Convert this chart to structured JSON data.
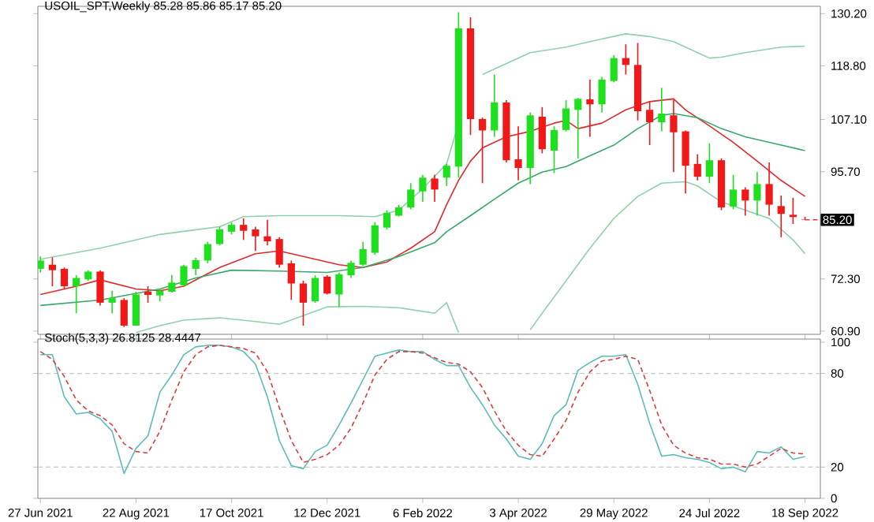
{
  "chart_data": [
    {
      "type": "candlestick",
      "title": "USOIL_SPT,Weekly  85.28 85.86 85.17 85.20",
      "x": [
        "2021-06-27",
        "2021-07-04",
        "2021-07-11",
        "2021-07-18",
        "2021-07-25",
        "2021-08-01",
        "2021-08-08",
        "2021-08-15",
        "2021-08-22",
        "2021-08-29",
        "2021-09-05",
        "2021-09-12",
        "2021-09-19",
        "2021-09-26",
        "2021-10-03",
        "2021-10-10",
        "2021-10-17",
        "2021-10-24",
        "2021-10-31",
        "2021-11-07",
        "2021-11-14",
        "2021-11-21",
        "2021-11-28",
        "2021-12-05",
        "2021-12-12",
        "2021-12-19",
        "2021-12-26",
        "2022-01-02",
        "2022-01-09",
        "2022-01-16",
        "2022-01-23",
        "2022-01-30",
        "2022-02-06",
        "2022-02-13",
        "2022-02-20",
        "2022-02-27",
        "2022-03-06",
        "2022-03-13",
        "2022-03-20",
        "2022-03-27",
        "2022-04-03",
        "2022-04-10",
        "2022-04-17",
        "2022-04-24",
        "2022-05-01",
        "2022-05-08",
        "2022-05-15",
        "2022-05-22",
        "2022-05-29",
        "2022-06-05",
        "2022-06-12",
        "2022-06-19",
        "2022-06-26",
        "2022-07-03",
        "2022-07-10",
        "2022-07-17",
        "2022-07-24",
        "2022-07-31",
        "2022-08-07",
        "2022-08-14",
        "2022-08-21",
        "2022-08-28",
        "2022-09-04",
        "2022-09-11",
        "2022-09-18"
      ],
      "ohlc": [
        [
          74.5,
          77.2,
          73.7,
          76.3
        ],
        [
          75.4,
          77.0,
          70.7,
          74.2
        ],
        [
          74.5,
          74.8,
          70.1,
          70.7
        ],
        [
          70.7,
          73.1,
          64.8,
          72.5
        ],
        [
          72.2,
          74.2,
          71.9,
          73.9
        ],
        [
          73.9,
          74.2,
          66.5,
          67.1
        ],
        [
          67.1,
          69.7,
          64.8,
          68.1
        ],
        [
          67.7,
          68.1,
          61.8,
          62.1
        ],
        [
          62.1,
          69.5,
          62.1,
          68.9
        ],
        [
          69.5,
          70.7,
          67.1,
          68.8
        ],
        [
          68.7,
          70.1,
          67.4,
          69.7
        ],
        [
          69.5,
          73.1,
          69.3,
          71.5
        ],
        [
          70.9,
          75.4,
          70.7,
          75.1
        ],
        [
          74.5,
          76.9,
          73.1,
          76.4
        ],
        [
          76.3,
          80.4,
          75.7,
          79.9
        ],
        [
          79.9,
          83.7,
          79.6,
          83.1
        ],
        [
          82.6,
          84.6,
          82.0,
          84.1
        ],
        [
          84.1,
          85.5,
          80.8,
          82.8
        ],
        [
          83.1,
          83.7,
          78.4,
          81.6
        ],
        [
          81.6,
          85.2,
          79.6,
          80.5
        ],
        [
          81.0,
          81.4,
          74.8,
          75.4
        ],
        [
          75.7,
          76.3,
          67.7,
          71.3
        ],
        [
          71.3,
          71.9,
          62.1,
          67.1
        ],
        [
          67.4,
          73.1,
          67.1,
          72.5
        ],
        [
          72.8,
          73.1,
          68.9,
          69.1
        ],
        [
          68.9,
          73.7,
          66.2,
          73.3
        ],
        [
          73.1,
          76.3,
          72.5,
          75.8
        ],
        [
          75.4,
          80.4,
          75.1,
          78.8
        ],
        [
          78.0,
          84.7,
          77.6,
          84.0
        ],
        [
          83.5,
          87.3,
          83.1,
          86.7
        ],
        [
          86.1,
          88.5,
          85.9,
          87.9
        ],
        [
          87.9,
          93.2,
          87.5,
          91.8
        ],
        [
          91.4,
          95.0,
          89.1,
          94.4
        ],
        [
          94.2,
          95.0,
          89.1,
          91.8
        ],
        [
          94.4,
          97.4,
          92.6,
          97.0
        ],
        [
          96.8,
          130.5,
          94.4,
          127.0
        ],
        [
          127.0,
          129.4,
          103.7,
          107.2
        ],
        [
          107.2,
          107.5,
          93.2,
          104.7
        ],
        [
          104.7,
          116.9,
          103.3,
          110.8
        ],
        [
          110.8,
          111.3,
          97.7,
          98.2
        ],
        [
          98.4,
          105.6,
          93.8,
          96.5
        ],
        [
          96.5,
          108.6,
          93.0,
          108.0
        ],
        [
          107.7,
          109.8,
          99.7,
          100.6
        ],
        [
          100.3,
          105.6,
          95.4,
          104.8
        ],
        [
          104.8,
          111.3,
          104.5,
          109.5
        ],
        [
          109.2,
          111.8,
          98.6,
          111.6
        ],
        [
          111.5,
          115.8,
          103.3,
          110.4
        ],
        [
          110.4,
          116.4,
          108.6,
          115.8
        ],
        [
          115.5,
          121.1,
          115.2,
          120.5
        ],
        [
          120.5,
          123.5,
          116.9,
          119.0
        ],
        [
          119.0,
          123.8,
          106.9,
          108.9
        ],
        [
          109.2,
          111.0,
          101.5,
          106.5
        ],
        [
          106.5,
          114.0,
          104.5,
          108.4
        ],
        [
          108.0,
          111.4,
          95.6,
          104.3
        ],
        [
          104.5,
          104.7,
          90.9,
          97.0
        ],
        [
          97.4,
          99.5,
          93.8,
          94.6
        ],
        [
          94.6,
          101.9,
          93.2,
          98.2
        ],
        [
          98.2,
          98.6,
          87.3,
          87.9
        ],
        [
          88.1,
          95.0,
          87.5,
          91.8
        ],
        [
          91.8,
          92.3,
          86.1,
          89.4
        ],
        [
          89.4,
          95.6,
          86.1,
          93.0
        ],
        [
          93.0,
          97.7,
          86.1,
          88.5
        ],
        [
          88.2,
          90.5,
          81.4,
          86.5
        ],
        [
          86.3,
          90.0,
          84.3,
          85.8
        ],
        [
          85.28,
          85.86,
          85.17,
          85.2
        ]
      ],
      "colors": [
        "#1fe01f",
        "#f01818",
        "#f01818",
        "#1fe01f",
        "#1fe01f",
        "#f01818",
        "#1fe01f",
        "#f01818",
        "#1fe01f",
        "#f01818",
        "#1fe01f",
        "#1fe01f",
        "#1fe01f",
        "#1fe01f",
        "#1fe01f",
        "#1fe01f",
        "#1fe01f",
        "#f01818",
        "#f01818",
        "#f01818",
        "#f01818",
        "#f01818",
        "#f01818",
        "#1fe01f",
        "#f01818",
        "#1fe01f",
        "#1fe01f",
        "#1fe01f",
        "#1fe01f",
        "#1fe01f",
        "#1fe01f",
        "#1fe01f",
        "#1fe01f",
        "#f01818",
        "#1fe01f",
        "#1fe01f",
        "#f01818",
        "#f01818",
        "#1fe01f",
        "#f01818",
        "#f01818",
        "#1fe01f",
        "#f01818",
        "#1fe01f",
        "#1fe01f",
        "#1fe01f",
        "#f01818",
        "#1fe01f",
        "#1fe01f",
        "#f01818",
        "#f01818",
        "#f01818",
        "#1fe01f",
        "#f01818",
        "#f01818",
        "#f01818",
        "#1fe01f",
        "#f01818",
        "#1fe01f",
        "#f01818",
        "#1fe01f",
        "#f01818",
        "#f01818",
        "#f01818",
        "#f01818"
      ],
      "series": [
        {
          "type": "line",
          "color": "#8fd1ab",
          "x": [
            "2021-06-27",
            "2021-08-01",
            "2021-09-05",
            "2021-10-10",
            "2021-10-24",
            "2021-11-14",
            "2021-12-19",
            "2022-01-09",
            "2022-01-23",
            "2022-02-06",
            "2022-02-20",
            "2022-02-27",
            "2022-03-06",
            "2022-03-13",
            "2022-03-27",
            "2022-04-10",
            "2022-05-01",
            "2022-05-15",
            "2022-06-05",
            "2022-06-19",
            "2022-07-03",
            "2022-07-17",
            "2022-07-24",
            "2022-07-31",
            "2022-08-14",
            "2022-09-04",
            "2022-09-18"
          ],
          "values": [
            76.6,
            79.0,
            82.0,
            83.7,
            85.9,
            86.1,
            86.1,
            85.9,
            87.3,
            92.0,
            97.4,
            106.3,
            null,
            116.9,
            119.3,
            121.7,
            122.9,
            124.1,
            125.8,
            125.2,
            124.1,
            121.7,
            120.5,
            120.7,
            121.7,
            122.9,
            123.1
          ]
        },
        {
          "type": "line",
          "color": "#e02a2a",
          "x": [
            "2021-06-27",
            "2021-07-18",
            "2021-08-01",
            "2021-08-22",
            "2021-09-05",
            "2021-09-19",
            "2021-10-10",
            "2021-10-31",
            "2021-11-14",
            "2021-11-28",
            "2021-12-19",
            "2022-01-02",
            "2022-01-16",
            "2022-01-30",
            "2022-02-13",
            "2022-02-20",
            "2022-02-27",
            "2022-03-06",
            "2022-03-13",
            "2022-03-27",
            "2022-04-10",
            "2022-04-24",
            "2022-05-01",
            "2022-05-08",
            "2022-05-22",
            "2022-06-05",
            "2022-06-19",
            "2022-07-03",
            "2022-07-10",
            "2022-07-24",
            "2022-08-07",
            "2022-08-21",
            "2022-09-04",
            "2022-09-18"
          ],
          "values": [
            68.9,
            70.7,
            72.1,
            70.1,
            69.7,
            70.7,
            74.8,
            77.8,
            78.4,
            77.2,
            75.4,
            74.8,
            76.0,
            79.0,
            82.6,
            88.5,
            93.8,
            98.0,
            100.9,
            103.3,
            104.5,
            106.3,
            106.9,
            105.1,
            106.3,
            109.2,
            111.0,
            111.6,
            109.2,
            105.7,
            102.1,
            98.0,
            93.8,
            90.3
          ]
        },
        {
          "type": "line",
          "color": "#3aa86a",
          "x": [
            "2021-06-27",
            "2021-08-01",
            "2021-09-05",
            "2021-09-26",
            "2021-10-17",
            "2021-11-14",
            "2021-12-12",
            "2022-01-02",
            "2022-01-23",
            "2022-02-13",
            "2022-02-20",
            "2022-03-06",
            "2022-03-20",
            "2022-04-03",
            "2022-04-17",
            "2022-05-01",
            "2022-05-15",
            "2022-05-29",
            "2022-06-12",
            "2022-06-26",
            "2022-07-03",
            "2022-07-17",
            "2022-07-31",
            "2022-08-14",
            "2022-08-28",
            "2022-09-18"
          ],
          "values": [
            66.5,
            67.7,
            70.1,
            72.5,
            74.2,
            74.0,
            73.7,
            74.8,
            77.2,
            80.2,
            82.6,
            86.1,
            89.7,
            93.2,
            95.6,
            96.8,
            99.2,
            101.5,
            105.1,
            108.0,
            108.4,
            107.5,
            105.1,
            103.3,
            102.1,
            100.3
          ]
        },
        {
          "type": "line",
          "color": "#8fd1ab",
          "x": [
            "2021-08-22",
            "2021-09-05",
            "2021-09-19",
            "2021-10-10",
            "2021-10-31",
            "2021-11-14",
            "2021-12-12",
            "2022-01-02",
            "2022-01-23",
            "2022-02-13",
            "2022-02-20",
            "2022-02-27",
            "2022-03-20",
            "2022-04-10",
            "2022-04-17",
            "2022-05-01",
            "2022-05-15",
            "2022-05-29",
            "2022-06-12",
            "2022-06-26",
            "2022-07-10",
            "2022-07-17",
            "2022-07-31",
            "2022-08-14",
            "2022-08-28",
            "2022-09-11",
            "2022-09-18"
          ],
          "values": [
            60.6,
            62.1,
            63.3,
            63.8,
            63.0,
            62.4,
            66.2,
            66.3,
            66.0,
            64.8,
            67.1,
            60.6,
            null,
            61.2,
            64.8,
            71.9,
            79.0,
            85.5,
            90.3,
            93.2,
            93.5,
            92.6,
            89.1,
            87.3,
            85.5,
            80.8,
            77.8
          ]
        }
      ],
      "xlim": [
        "2021-06-25T12:00",
        "2022-09-27"
      ],
      "ylim": [
        60.2,
        131.8
      ],
      "yticks": [
        {
          "value": 60.9,
          "label": "60.90"
        },
        {
          "value": 72.3,
          "label": "72.30"
        },
        {
          "value": 95.7,
          "label": "95.70"
        },
        {
          "value": 107.1,
          "label": "107.10"
        },
        {
          "value": 118.8,
          "label": "118.80"
        },
        {
          "value": 130.2,
          "label": "130.20"
        }
      ],
      "tick_labels": "y",
      "annotations": [
        {
          "text": "85.20",
          "x": "2022-09-18",
          "y": 85.2
        }
      ]
    },
    {
      "type": "line",
      "title": "Stoch(5,3,3) 26.8125 28.4447",
      "x": [
        "2021-06-27",
        "2021-07-04",
        "2021-07-11",
        "2021-07-18",
        "2021-07-25",
        "2021-08-01",
        "2021-08-08",
        "2021-08-15",
        "2021-08-22",
        "2021-08-29",
        "2021-09-05",
        "2021-09-12",
        "2021-09-19",
        "2021-09-26",
        "2021-10-03",
        "2021-10-10",
        "2021-10-17",
        "2021-10-24",
        "2021-10-31",
        "2021-11-07",
        "2021-11-14",
        "2021-11-21",
        "2021-11-28",
        "2021-12-05",
        "2021-12-12",
        "2021-12-19",
        "2021-12-26",
        "2022-01-02",
        "2022-01-09",
        "2022-01-16",
        "2022-01-23",
        "2022-01-30",
        "2022-02-06",
        "2022-02-13",
        "2022-02-20",
        "2022-02-27",
        "2022-03-06",
        "2022-03-13",
        "2022-03-20",
        "2022-03-27",
        "2022-04-03",
        "2022-04-10",
        "2022-04-17",
        "2022-04-24",
        "2022-05-01",
        "2022-05-08",
        "2022-05-15",
        "2022-05-22",
        "2022-05-29",
        "2022-06-05",
        "2022-06-12",
        "2022-06-19",
        "2022-06-26",
        "2022-07-03",
        "2022-07-10",
        "2022-07-17",
        "2022-07-24",
        "2022-07-31",
        "2022-08-07",
        "2022-08-14",
        "2022-08-21",
        "2022-08-28",
        "2022-09-04",
        "2022-09-11",
        "2022-09-18"
      ],
      "series": [
        {
          "color": "#5bbcb8",
          "line_style": "solid",
          "values": [
            92,
            92,
            65,
            54,
            55,
            51,
            43,
            16,
            32,
            40,
            68,
            79,
            92,
            97,
            98,
            98,
            97,
            94,
            86,
            65,
            37,
            21,
            19,
            30,
            34,
            47,
            61,
            76,
            91,
            93,
            95,
            94,
            94,
            89,
            85,
            85,
            71,
            60,
            47,
            38,
            27,
            25,
            35,
            53,
            60,
            82,
            87,
            91,
            91,
            92,
            73,
            48,
            27,
            28,
            26,
            25,
            23,
            19,
            20,
            17,
            30,
            29,
            33,
            25,
            26.8
          ]
        },
        {
          "color": "#d84040",
          "line_style": "dashed",
          "values": [
            94,
            89,
            78,
            63,
            56,
            53,
            47,
            35,
            30,
            29,
            43,
            63,
            81,
            92,
            97,
            98,
            97,
            96,
            93,
            81,
            58,
            37,
            23,
            25,
            28,
            34,
            45,
            61,
            79,
            89,
            94,
            94,
            93,
            90,
            87,
            86,
            81,
            71,
            56,
            43,
            34,
            28,
            27,
            38,
            50,
            68,
            81,
            88,
            89,
            91,
            89,
            69,
            47,
            34,
            29,
            26,
            25,
            22,
            22,
            20,
            22,
            27,
            32,
            29,
            28.4
          ]
        }
      ],
      "xlim": [
        "2021-06-25T12:00",
        "2022-09-27"
      ],
      "ylim": [
        0,
        102
      ],
      "xticks": [
        {
          "value": "2021-06-27",
          "label": "27 Jun 2021"
        },
        {
          "value": "2021-08-22",
          "label": "22 Aug 2021"
        },
        {
          "value": "2021-10-17",
          "label": "17 Oct 2021"
        },
        {
          "value": "2021-12-12",
          "label": "12 Dec 2021"
        },
        {
          "value": "2022-02-06",
          "label": "6 Feb 2022"
        },
        {
          "value": "2022-04-03",
          "label": "3 Apr 2022"
        },
        {
          "value": "2022-05-29",
          "label": "29 May 2022"
        },
        {
          "value": "2022-07-24",
          "label": "24 Jul 2022"
        },
        {
          "value": "2022-09-18",
          "label": "18 Sep 2022"
        }
      ],
      "yticks": [
        0,
        20,
        80,
        100
      ],
      "ref_lines": [
        {
          "axis": "y",
          "value": 20,
          "color": "#c8c8c8",
          "line_style": "dashed"
        },
        {
          "axis": "y",
          "value": 80,
          "color": "#c8c8c8",
          "line_style": "dashed"
        }
      ]
    }
  ]
}
